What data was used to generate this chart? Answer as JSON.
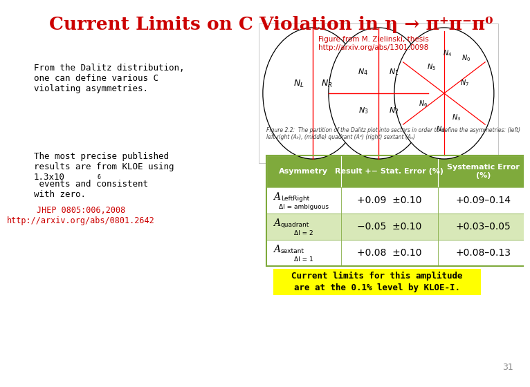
{
  "title": "Current Limits on C Violation in η → π⁺π⁻π⁰",
  "title_color": "#cc0000",
  "bg_color": "#ffffff",
  "figure_ref": "Figure from M. Zielinski, thesis\nhttp://arxiv.org/abs/1301.0098",
  "figure_ref_color": "#cc0000",
  "left_text1": "From the Dalitz distribution,\none can define various C\nviolating asymmetries.",
  "left_text2a": "The most precise published\nresults are from KLOE using\n1.3x10",
  "left_text2b": "6",
  "left_text2c": " events and consistent\nwith zero.",
  "left_text3": "JHEP 0805:006,2008\nhttp://arxiv.org/abs/0801.2642",
  "left_text3_color": "#cc0000",
  "table_header_bg": "#7faa3c",
  "table_header_color": "#ffffff",
  "table_row_bg_even": "#ffffff",
  "table_row_bg_odd": "#d8e8b8",
  "table_border_color": "#7faa3c",
  "table_headers": [
    "Asymmetry",
    "Result +− Stat. Error (%)",
    "Systematic Error\n(%)"
  ],
  "table_rows": [
    [
      "A",
      "LeftRight",
      "ΔI = ambiguous",
      "+0.09  ±0.10",
      "+0.09–0.14"
    ],
    [
      "A",
      "quadrant",
      "ΔI = 2",
      "−0.05  ±0.10",
      "+0.03–0.05"
    ],
    [
      "A",
      "sextant",
      "ΔI = 1",
      "+0.08  ±0.10",
      "+0.08–0.13"
    ]
  ],
  "footer_text": "Current limits for this amplitude\nare at the 0.1% level by KLOE-I.",
  "footer_bg": "#ffff00",
  "footer_text_color": "#000000",
  "page_num": "31",
  "caption": "Figure 2.2:  The partition of the Dalitz plot into sectors in order to define the asymmetries: (left)\nleft-right (Aₗᵣ), (middle) quadrant (Aᵈ) (right) sextant (Aₛ)"
}
